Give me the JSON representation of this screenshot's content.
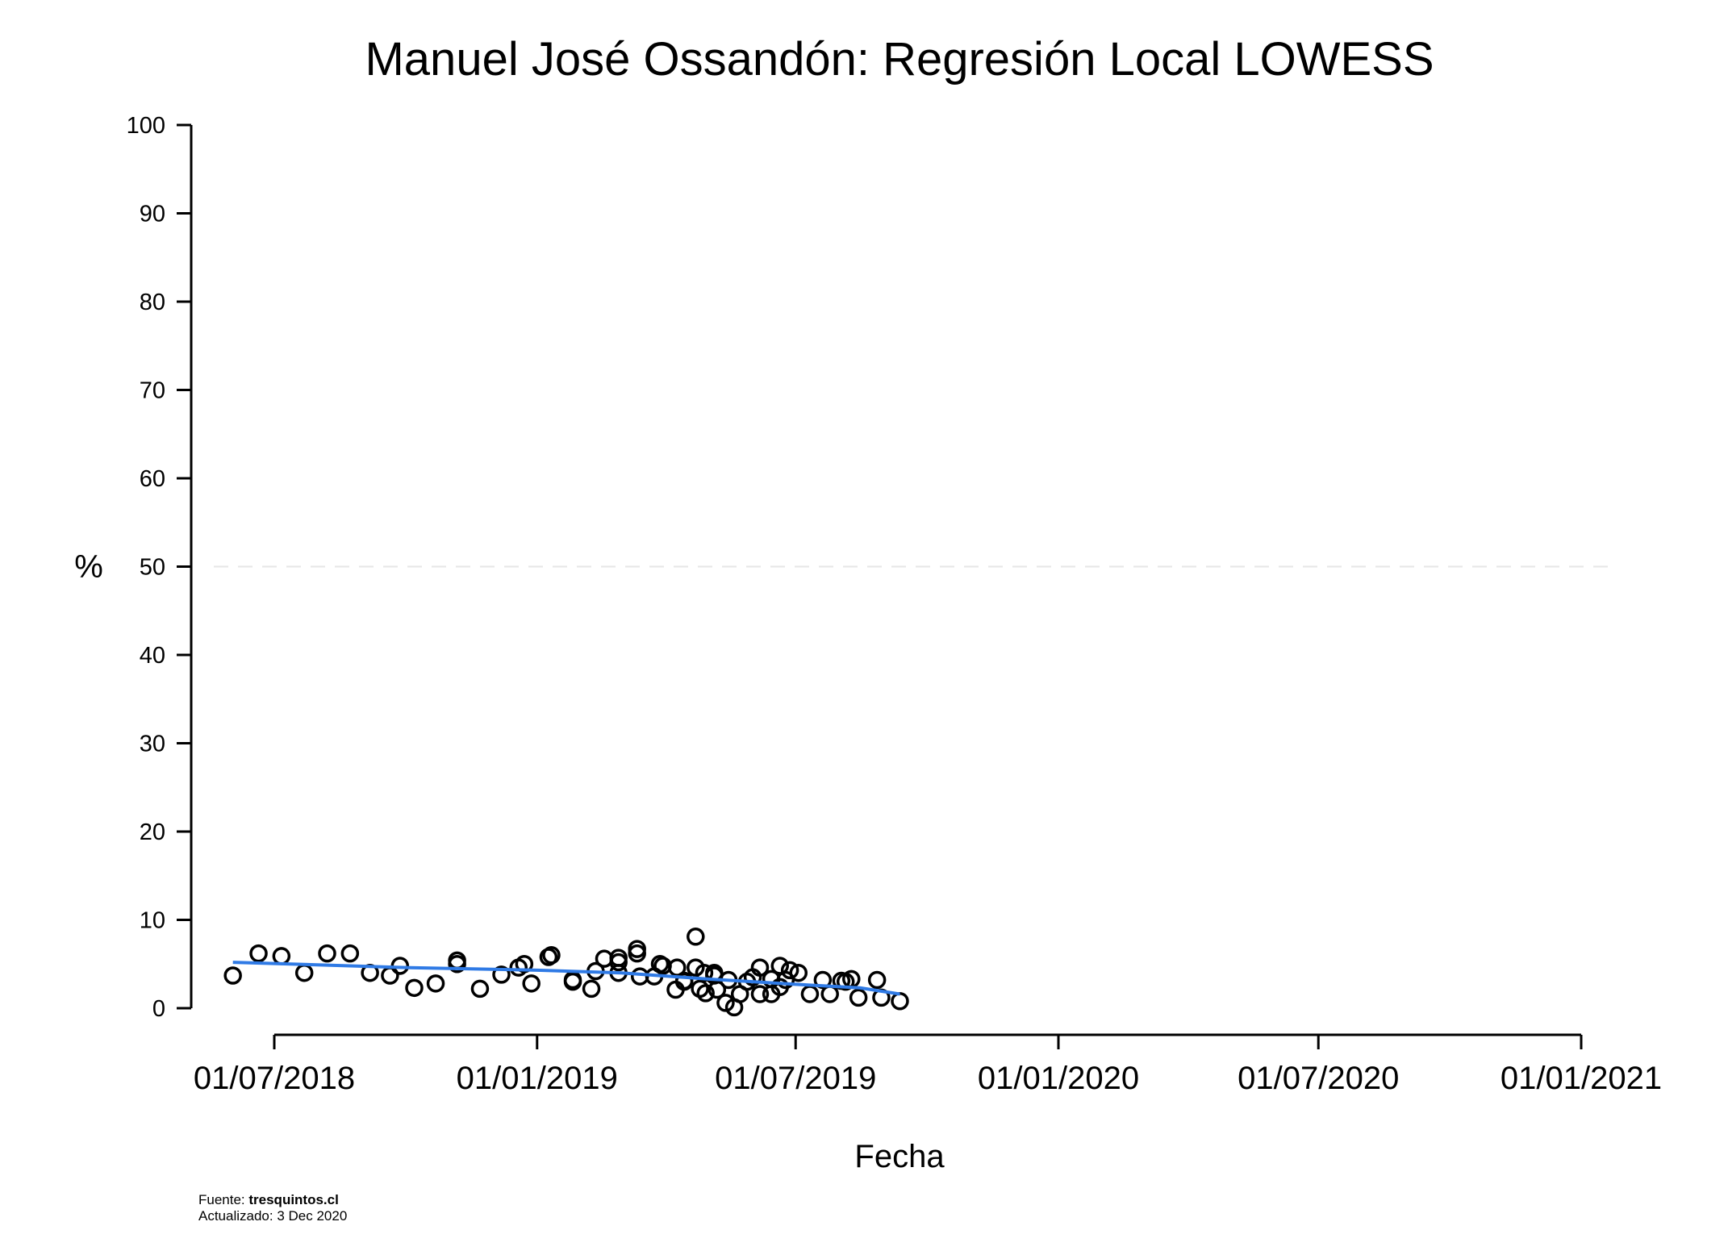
{
  "chart_data": {
    "type": "scatter",
    "title": "Manuel José Ossandón: Regresión Local LOWESS",
    "xlabel": "Fecha",
    "ylabel": "%",
    "ylim": [
      0,
      100
    ],
    "xlim": [
      "2018-05-12",
      "2021-01-01"
    ],
    "y_ticks": [
      0,
      10,
      20,
      30,
      40,
      50,
      60,
      70,
      80,
      90,
      100
    ],
    "x_ticks": [
      "2018-07-01",
      "2019-01-01",
      "2019-07-01",
      "2020-01-01",
      "2020-07-01",
      "2021-01-01"
    ],
    "x_tick_labels": [
      "01/07/2018",
      "01/01/2019",
      "01/07/2019",
      "01/01/2020",
      "01/07/2020",
      "01/01/2021"
    ],
    "reference_line": {
      "y": 50,
      "style": "dashed",
      "color": "#e6e6e6"
    },
    "grid": false,
    "colors": {
      "points": "#000000",
      "trend": "#2f7ae5"
    },
    "series": [
      {
        "kind": "points",
        "points": [
          [
            "2018-06-02",
            3.7
          ],
          [
            "2018-06-20",
            6.2
          ],
          [
            "2018-07-06",
            5.9
          ],
          [
            "2018-07-22",
            4.0
          ],
          [
            "2018-08-07",
            6.2
          ],
          [
            "2018-08-23",
            6.2
          ],
          [
            "2018-09-06",
            4.0
          ],
          [
            "2018-09-20",
            3.7
          ],
          [
            "2018-09-27",
            4.8
          ],
          [
            "2018-10-07",
            2.3
          ],
          [
            "2018-10-22",
            2.8
          ],
          [
            "2018-11-06",
            5.4
          ],
          [
            "2018-11-06",
            5.0
          ],
          [
            "2018-11-22",
            2.2
          ],
          [
            "2018-12-07",
            3.8
          ],
          [
            "2018-12-19",
            4.6
          ],
          [
            "2018-12-23",
            5.0
          ],
          [
            "2018-12-28",
            2.8
          ],
          [
            "2019-01-09",
            5.8
          ],
          [
            "2019-01-11",
            6.0
          ],
          [
            "2019-01-26",
            3.2
          ],
          [
            "2019-01-26",
            3.0
          ],
          [
            "2019-02-08",
            2.2
          ],
          [
            "2019-02-11",
            4.2
          ],
          [
            "2019-02-17",
            5.6
          ],
          [
            "2019-02-27",
            5.7
          ],
          [
            "2019-02-27",
            5.2
          ],
          [
            "2019-02-27",
            4.0
          ],
          [
            "2019-03-12",
            6.7
          ],
          [
            "2019-03-12",
            6.2
          ],
          [
            "2019-03-14",
            3.6
          ],
          [
            "2019-03-24",
            3.6
          ],
          [
            "2019-03-28",
            5.0
          ],
          [
            "2019-03-30",
            4.8
          ],
          [
            "2019-04-08",
            2.1
          ],
          [
            "2019-04-09",
            4.6
          ],
          [
            "2019-04-14",
            3.0
          ],
          [
            "2019-04-14",
            3.1
          ],
          [
            "2019-04-22",
            8.1
          ],
          [
            "2019-04-22",
            4.6
          ],
          [
            "2019-04-25",
            2.2
          ],
          [
            "2019-04-28",
            4.0
          ],
          [
            "2019-04-29",
            1.7
          ],
          [
            "2019-05-05",
            3.7
          ],
          [
            "2019-05-05",
            4.0
          ],
          [
            "2019-05-07",
            2.1
          ],
          [
            "2019-05-13",
            0.6
          ],
          [
            "2019-05-15",
            3.2
          ],
          [
            "2019-05-19",
            0.1
          ],
          [
            "2019-05-23",
            1.6
          ],
          [
            "2019-05-28",
            3.0
          ],
          [
            "2019-06-01",
            3.5
          ],
          [
            "2019-06-06",
            4.6
          ],
          [
            "2019-06-06",
            1.6
          ],
          [
            "2019-06-14",
            3.3
          ],
          [
            "2019-06-14",
            1.6
          ],
          [
            "2019-06-20",
            4.8
          ],
          [
            "2019-06-20",
            2.4
          ],
          [
            "2019-06-24",
            3.2
          ],
          [
            "2019-06-27",
            4.3
          ],
          [
            "2019-07-03",
            4.0
          ],
          [
            "2019-07-11",
            1.6
          ],
          [
            "2019-07-20",
            3.2
          ],
          [
            "2019-07-25",
            1.6
          ],
          [
            "2019-08-02",
            3.1
          ],
          [
            "2019-08-05",
            3.0
          ],
          [
            "2019-08-09",
            3.3
          ],
          [
            "2019-08-14",
            1.2
          ],
          [
            "2019-08-27",
            3.2
          ],
          [
            "2019-08-30",
            1.2
          ],
          [
            "2019-09-12",
            0.8
          ]
        ]
      },
      {
        "kind": "trend",
        "points": [
          [
            "2018-06-02",
            5.2
          ],
          [
            "2018-10-01",
            4.6
          ],
          [
            "2019-01-01",
            4.3
          ],
          [
            "2019-03-01",
            4.0
          ],
          [
            "2019-05-01",
            3.3
          ],
          [
            "2019-07-01",
            2.7
          ],
          [
            "2019-08-15",
            2.3
          ],
          [
            "2019-09-12",
            1.6
          ]
        ]
      }
    ]
  },
  "footer": {
    "source_prefix": "Fuente: ",
    "source_name": "tresquintos.cl",
    "updated": "Actualizado: 3 Dec 2020"
  }
}
